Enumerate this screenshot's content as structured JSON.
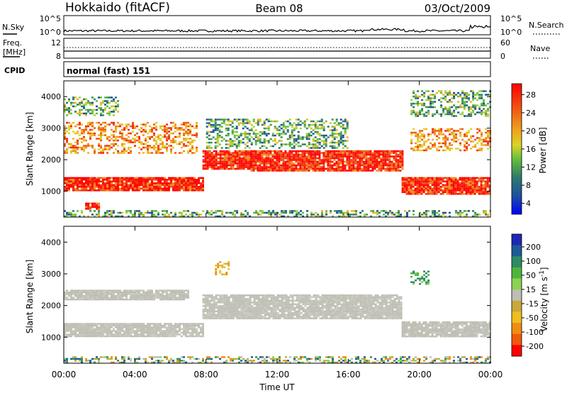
{
  "header": {
    "title_left": "Hokkaido (fitACF)",
    "title_center": "Beam 08",
    "title_right": "03/Oct/2009"
  },
  "sky_panel": {
    "left_label": "N.Sky",
    "right_label": "N.Search",
    "left_ticks": [
      "10^5",
      "10^0"
    ],
    "right_ticks": [
      "10^5",
      "10^0"
    ]
  },
  "freq_panel": {
    "left_label_1": "Freq.",
    "left_label_2": "[MHz]",
    "right_label": "Nave",
    "left_ticks": [
      "12",
      "8"
    ],
    "right_ticks": [
      "60",
      "0"
    ]
  },
  "cpid_panel": {
    "label": "CPID",
    "value": "normal (fast) 151"
  },
  "chart_data": [
    {
      "type": "heatmap",
      "quantity": "Power",
      "ylabel": "Slant Range [km]",
      "ylim": [
        180,
        4500
      ],
      "yticks": [
        "1000",
        "2000",
        "3000",
        "4000"
      ],
      "xlim_hours": [
        0,
        24
      ],
      "colorbar": {
        "label": "Power [dB]",
        "ticks": [
          "28",
          "24",
          "20",
          "16",
          "12",
          "8",
          "4"
        ],
        "colors": [
          "#ff0000",
          "#f62a0a",
          "#ef5a14",
          "#f08c1e",
          "#f0b41e",
          "#dcd228",
          "#a0d23c",
          "#64be3c",
          "#3c9650",
          "#2d786e",
          "#1e5096",
          "#0a28c8",
          "#0000ff"
        ]
      },
      "regions": [
        {
          "from_hr": 0.0,
          "to_hr": 7.8,
          "range_km": [
            1000,
            1450
          ],
          "level": "strong"
        },
        {
          "from_hr": 1.2,
          "to_hr": 2.0,
          "range_km": [
            460,
            640
          ],
          "level": "strong"
        },
        {
          "from_hr": 7.8,
          "to_hr": 10.5,
          "range_km": [
            1700,
            2300
          ],
          "level": "strong"
        },
        {
          "from_hr": 10.5,
          "to_hr": 19.0,
          "range_km": [
            1650,
            2300
          ],
          "level": "strong"
        },
        {
          "from_hr": 19.0,
          "to_hr": 24.0,
          "range_km": [
            900,
            1450
          ],
          "level": "strong"
        },
        {
          "from_hr": 0.0,
          "to_hr": 7.5,
          "range_km": [
            2200,
            3200
          ],
          "level": "medium"
        },
        {
          "from_hr": 19.5,
          "to_hr": 24.0,
          "range_km": [
            2300,
            3000
          ],
          "level": "medium"
        },
        {
          "from_hr": 8.0,
          "to_hr": 16.0,
          "range_km": [
            2350,
            3300
          ],
          "level": "weak"
        },
        {
          "from_hr": 0.0,
          "to_hr": 24.0,
          "range_km": [
            200,
            400
          ],
          "level": "weak"
        },
        {
          "from_hr": 0.0,
          "to_hr": 3.0,
          "range_km": [
            3400,
            4000
          ],
          "level": "weak"
        },
        {
          "from_hr": 19.5,
          "to_hr": 24.0,
          "range_km": [
            3400,
            4200
          ],
          "level": "weak"
        }
      ]
    },
    {
      "type": "heatmap",
      "quantity": "Velocity",
      "ylabel": "Slant Range [km]",
      "ylim": [
        180,
        4500
      ],
      "yticks": [
        "1000",
        "2000",
        "3000",
        "4000"
      ],
      "xlabel": "Time UT",
      "xticks": [
        "00:00",
        "04:00",
        "08:00",
        "12:00",
        "16:00",
        "20:00",
        "00:00"
      ],
      "xlim_hours": [
        0,
        24
      ],
      "colorbar": {
        "label": "Velocity [m s^-1]",
        "ticks": [
          "200",
          "100",
          "50",
          "15",
          "-15",
          "-50",
          "-100",
          "-200"
        ],
        "colors": [
          "#1e28b4",
          "#1e5a96",
          "#2d8c64",
          "#50b43c",
          "#8cd250",
          "#bebeb4",
          "#c8a83c",
          "#f0be1e",
          "#f08c14",
          "#f05a0a",
          "#ff0000"
        ]
      },
      "regions": [
        {
          "from_hr": 0.0,
          "to_hr": 7.8,
          "range_km": [
            1050,
            1450
          ],
          "level": "ground_scatter"
        },
        {
          "from_hr": 7.8,
          "to_hr": 19.0,
          "range_km": [
            1600,
            2350
          ],
          "level": "ground_scatter"
        },
        {
          "from_hr": 19.0,
          "to_hr": 24.0,
          "range_km": [
            1050,
            1500
          ],
          "level": "ground_scatter"
        },
        {
          "from_hr": 0.0,
          "to_hr": 7.0,
          "range_km": [
            2200,
            2500
          ],
          "level": "ground_scatter"
        },
        {
          "from_hr": 8.5,
          "to_hr": 9.3,
          "range_km": [
            3000,
            3400
          ],
          "level": "negative"
        },
        {
          "from_hr": 19.5,
          "to_hr": 20.5,
          "range_km": [
            2700,
            3100
          ],
          "level": "positive"
        },
        {
          "from_hr": 0.0,
          "to_hr": 24.0,
          "range_km": [
            200,
            400
          ],
          "level": "mixed"
        }
      ]
    }
  ]
}
